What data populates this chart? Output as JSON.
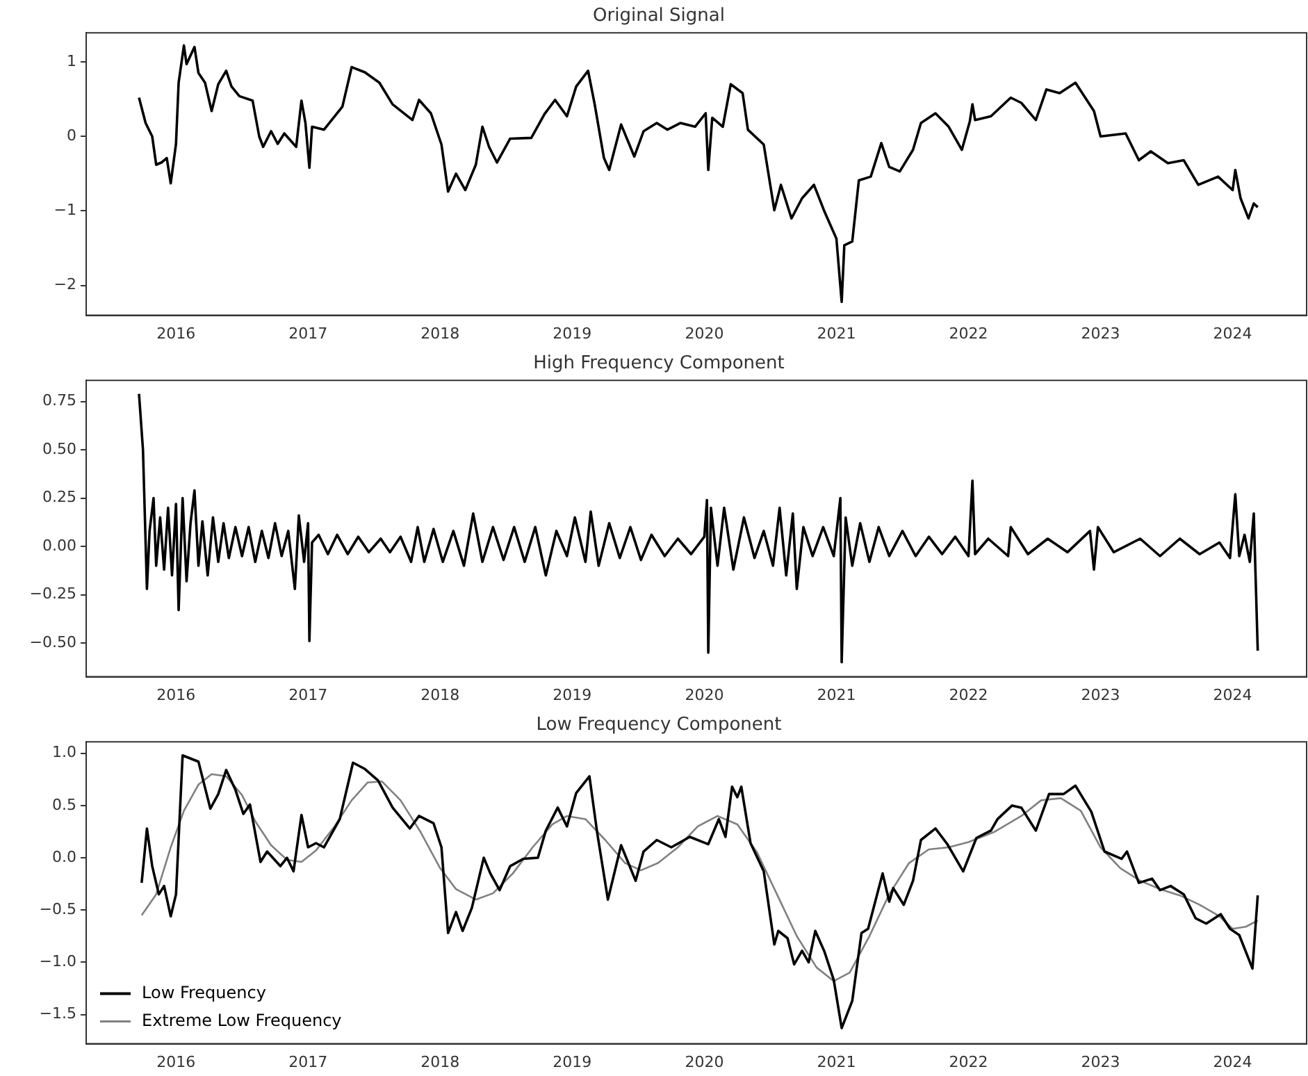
{
  "chart_data": [
    {
      "type": "line",
      "title": "Original Signal",
      "xlim": [
        2015.32,
        2024.56
      ],
      "xticks": [
        2016,
        2017,
        2018,
        2019,
        2020,
        2021,
        2022,
        2023,
        2024
      ],
      "ylim": [
        -2.4,
        1.39
      ],
      "yticks": [
        {
          "value": -2,
          "label": "−2"
        },
        {
          "value": -1,
          "label": "−1"
        },
        0,
        1
      ],
      "grid": false,
      "series": [
        {
          "color": "#000000",
          "x": [
            2015.72,
            2015.77,
            2015.82,
            2015.85,
            2015.89,
            2015.93,
            2015.96,
            2016.0,
            2016.02,
            2016.06,
            2016.08,
            2016.14,
            2016.17,
            2016.22,
            2016.27,
            2016.32,
            2016.38,
            2016.42,
            2016.48,
            2016.58,
            2016.63,
            2016.66,
            2016.72,
            2016.77,
            2016.82,
            2016.91,
            2016.95,
            2016.98,
            2017.01,
            2017.03,
            2017.12,
            2017.26,
            2017.33,
            2017.43,
            2017.54,
            2017.64,
            2017.79,
            2017.84,
            2017.93,
            2018.01,
            2018.06,
            2018.12,
            2018.19,
            2018.27,
            2018.32,
            2018.37,
            2018.43,
            2018.53,
            2018.69,
            2018.79,
            2018.87,
            2018.96,
            2019.03,
            2019.12,
            2019.17,
            2019.24,
            2019.28,
            2019.37,
            2019.47,
            2019.54,
            2019.64,
            2019.72,
            2019.82,
            2019.93,
            2020.01,
            2020.03,
            2020.06,
            2020.14,
            2020.2,
            2020.29,
            2020.33,
            2020.45,
            2020.53,
            2020.58,
            2020.66,
            2020.74,
            2020.83,
            2020.91,
            2021.0,
            2021.04,
            2021.06,
            2021.12,
            2021.17,
            2021.26,
            2021.34,
            2021.4,
            2021.48,
            2021.58,
            2021.64,
            2021.75,
            2021.85,
            2021.95,
            2022.01,
            2022.03,
            2022.05,
            2022.17,
            2022.32,
            2022.4,
            2022.51,
            2022.59,
            2022.69,
            2022.81,
            2022.95,
            2023.0,
            2023.19,
            2023.29,
            2023.38,
            2023.51,
            2023.63,
            2023.74,
            2023.89,
            2024.0,
            2024.02,
            2024.06,
            2024.12,
            2024.16,
            2024.19
          ],
          "values": [
            0.52,
            0.18,
            0.0,
            -0.38,
            -0.35,
            -0.29,
            -0.63,
            -0.1,
            0.72,
            1.22,
            0.97,
            1.2,
            0.85,
            0.72,
            0.34,
            0.7,
            0.88,
            0.67,
            0.54,
            0.48,
            0.0,
            -0.14,
            0.07,
            -0.1,
            0.04,
            -0.14,
            0.48,
            0.18,
            -0.42,
            0.13,
            0.09,
            0.4,
            0.93,
            0.86,
            0.72,
            0.43,
            0.22,
            0.49,
            0.31,
            -0.11,
            -0.74,
            -0.5,
            -0.72,
            -0.38,
            0.13,
            -0.14,
            -0.35,
            -0.03,
            -0.02,
            0.3,
            0.49,
            0.27,
            0.67,
            0.88,
            0.43,
            -0.29,
            -0.45,
            0.16,
            -0.27,
            0.07,
            0.18,
            0.09,
            0.18,
            0.13,
            0.31,
            -0.45,
            0.25,
            0.13,
            0.7,
            0.58,
            0.09,
            -0.11,
            -0.99,
            -0.65,
            -1.1,
            -0.83,
            -0.65,
            -1.01,
            -1.37,
            -2.22,
            -1.46,
            -1.41,
            -0.59,
            -0.54,
            -0.09,
            -0.41,
            -0.47,
            -0.18,
            0.18,
            0.31,
            0.13,
            -0.18,
            0.2,
            0.43,
            0.22,
            0.27,
            0.52,
            0.45,
            0.22,
            0.63,
            0.58,
            0.72,
            0.34,
            0.0,
            0.04,
            -0.32,
            -0.2,
            -0.36,
            -0.32,
            -0.65,
            -0.54,
            -0.72,
            -0.45,
            -0.83,
            -1.1,
            -0.9,
            -0.95
          ]
        }
      ]
    },
    {
      "type": "line",
      "title": "High Frequency Component",
      "xlim": [
        2015.32,
        2024.56
      ],
      "xticks": [
        2016,
        2017,
        2018,
        2019,
        2020,
        2021,
        2022,
        2023,
        2024
      ],
      "ylim": [
        -0.675,
        0.86
      ],
      "yticks": [
        {
          "value": -0.5,
          "label": "−0.50"
        },
        {
          "value": -0.25,
          "label": "−0.25"
        },
        {
          "value": 0,
          "label": "0.00"
        },
        {
          "value": 0.25,
          "label": "0.25"
        },
        {
          "value": 0.5,
          "label": "0.50"
        },
        {
          "value": 0.75,
          "label": "0.75"
        }
      ],
      "grid": false,
      "series": [
        {
          "color": "#000000",
          "x": [
            2015.72,
            2015.75,
            2015.78,
            2015.8,
            2015.83,
            2015.85,
            2015.88,
            2015.91,
            2015.94,
            2015.97,
            2016.0,
            2016.02,
            2016.05,
            2016.08,
            2016.11,
            2016.14,
            2016.17,
            2016.2,
            2016.24,
            2016.28,
            2016.32,
            2016.36,
            2016.4,
            2016.45,
            2016.5,
            2016.55,
            2016.6,
            2016.65,
            2016.7,
            2016.75,
            2016.8,
            2016.85,
            2016.9,
            2016.93,
            2016.97,
            2017.0,
            2017.01,
            2017.03,
            2017.08,
            2017.15,
            2017.22,
            2017.3,
            2017.38,
            2017.46,
            2017.55,
            2017.62,
            2017.7,
            2017.78,
            2017.83,
            2017.88,
            2017.95,
            2018.02,
            2018.1,
            2018.18,
            2018.25,
            2018.32,
            2018.4,
            2018.48,
            2018.56,
            2018.64,
            2018.72,
            2018.8,
            2018.88,
            2018.96,
            2019.02,
            2019.1,
            2019.14,
            2019.2,
            2019.28,
            2019.36,
            2019.44,
            2019.52,
            2019.6,
            2019.7,
            2019.8,
            2019.9,
            2020.0,
            2020.02,
            2020.03,
            2020.05,
            2020.1,
            2020.15,
            2020.22,
            2020.3,
            2020.38,
            2020.45,
            2020.52,
            2020.57,
            2020.62,
            2020.67,
            2020.7,
            2020.75,
            2020.82,
            2020.9,
            2020.98,
            2021.03,
            2021.04,
            2021.07,
            2021.12,
            2021.18,
            2021.25,
            2021.32,
            2021.4,
            2021.5,
            2021.6,
            2021.7,
            2021.8,
            2021.9,
            2022.0,
            2022.03,
            2022.05,
            2022.15,
            2022.3,
            2022.32,
            2022.45,
            2022.6,
            2022.75,
            2022.92,
            2022.95,
            2022.98,
            2023.1,
            2023.3,
            2023.45,
            2023.6,
            2023.75,
            2023.9,
            2023.98,
            2024.02,
            2024.05,
            2024.09,
            2024.13,
            2024.16,
            2024.19
          ],
          "values": [
            0.79,
            0.5,
            -0.22,
            0.08,
            0.25,
            -0.1,
            0.15,
            -0.12,
            0.2,
            -0.15,
            0.22,
            -0.33,
            0.25,
            -0.18,
            0.12,
            0.29,
            -0.1,
            0.13,
            -0.15,
            0.15,
            -0.08,
            0.12,
            -0.06,
            0.1,
            -0.05,
            0.1,
            -0.08,
            0.08,
            -0.06,
            0.12,
            -0.05,
            0.08,
            -0.22,
            0.16,
            -0.08,
            0.12,
            -0.49,
            0.02,
            0.06,
            -0.04,
            0.06,
            -0.04,
            0.05,
            -0.03,
            0.04,
            -0.03,
            0.05,
            -0.08,
            0.1,
            -0.08,
            0.09,
            -0.08,
            0.08,
            -0.1,
            0.17,
            -0.08,
            0.1,
            -0.07,
            0.1,
            -0.08,
            0.1,
            -0.15,
            0.08,
            -0.05,
            0.15,
            -0.08,
            0.18,
            -0.1,
            0.12,
            -0.06,
            0.1,
            -0.07,
            0.06,
            -0.05,
            0.04,
            -0.04,
            0.05,
            0.24,
            -0.55,
            0.2,
            -0.1,
            0.2,
            -0.12,
            0.15,
            -0.06,
            0.08,
            -0.1,
            0.2,
            -0.15,
            0.17,
            -0.22,
            0.1,
            -0.05,
            0.1,
            -0.05,
            0.25,
            -0.6,
            0.15,
            -0.1,
            0.12,
            -0.08,
            0.1,
            -0.05,
            0.08,
            -0.05,
            0.05,
            -0.04,
            0.05,
            -0.05,
            0.34,
            -0.04,
            0.04,
            -0.05,
            0.1,
            -0.04,
            0.04,
            -0.03,
            0.08,
            -0.12,
            0.1,
            -0.03,
            0.04,
            -0.05,
            0.04,
            -0.04,
            0.02,
            -0.06,
            0.27,
            -0.05,
            0.06,
            -0.08,
            0.17,
            -0.54
          ]
        }
      ]
    },
    {
      "type": "line",
      "title": "Low Frequency Component",
      "xlim": [
        2015.32,
        2024.56
      ],
      "xticks": [
        2016,
        2017,
        2018,
        2019,
        2020,
        2021,
        2022,
        2023,
        2024
      ],
      "ylim": [
        -1.78,
        1.11
      ],
      "yticks": [
        {
          "value": -1.5,
          "label": "−1.5"
        },
        {
          "value": -1,
          "label": "−1.0"
        },
        {
          "value": -0.5,
          "label": "−0.5"
        },
        {
          "value": 0,
          "label": "0.0"
        },
        {
          "value": 0.5,
          "label": "0.5"
        },
        {
          "value": 1,
          "label": "1.0"
        }
      ],
      "grid": false,
      "legend": "bottom left",
      "series": [
        {
          "name": "Low Frequency",
          "color": "#000000",
          "x": [
            2015.74,
            2015.78,
            2015.82,
            2015.87,
            2015.91,
            2015.96,
            2016.0,
            2016.05,
            2016.17,
            2016.26,
            2016.32,
            2016.38,
            2016.45,
            2016.51,
            2016.56,
            2016.64,
            2016.69,
            2016.79,
            2016.84,
            2016.89,
            2016.95,
            2017.0,
            2017.06,
            2017.12,
            2017.24,
            2017.34,
            2017.43,
            2017.53,
            2017.64,
            2017.77,
            2017.84,
            2017.95,
            2018.01,
            2018.06,
            2018.12,
            2018.17,
            2018.24,
            2018.33,
            2018.38,
            2018.45,
            2018.53,
            2018.63,
            2018.74,
            2018.8,
            2018.89,
            2018.96,
            2019.03,
            2019.13,
            2019.19,
            2019.27,
            2019.37,
            2019.48,
            2019.54,
            2019.64,
            2019.75,
            2019.89,
            2020.03,
            2020.11,
            2020.16,
            2020.21,
            2020.25,
            2020.28,
            2020.35,
            2020.45,
            2020.53,
            2020.56,
            2020.63,
            2020.68,
            2020.74,
            2020.79,
            2020.84,
            2020.91,
            2020.98,
            2021.04,
            2021.12,
            2021.19,
            2021.24,
            2021.35,
            2021.4,
            2021.43,
            2021.51,
            2021.58,
            2021.64,
            2021.75,
            2021.84,
            2021.96,
            2022.06,
            2022.17,
            2022.22,
            2022.33,
            2022.4,
            2022.51,
            2022.61,
            2022.72,
            2022.81,
            2022.93,
            2023.03,
            2023.16,
            2023.2,
            2023.29,
            2023.39,
            2023.45,
            2023.53,
            2023.63,
            2023.72,
            2023.8,
            2023.91,
            2023.98,
            2024.05,
            2024.15,
            2024.19
          ],
          "values": [
            -0.24,
            0.28,
            -0.08,
            -0.35,
            -0.27,
            -0.56,
            -0.35,
            0.98,
            0.92,
            0.47,
            0.61,
            0.84,
            0.65,
            0.42,
            0.51,
            -0.04,
            0.06,
            -0.08,
            0.0,
            -0.13,
            0.41,
            0.1,
            0.14,
            0.1,
            0.37,
            0.91,
            0.85,
            0.74,
            0.48,
            0.28,
            0.4,
            0.33,
            0.1,
            -0.72,
            -0.52,
            -0.7,
            -0.48,
            0.0,
            -0.15,
            -0.31,
            -0.08,
            -0.01,
            0.0,
            0.26,
            0.48,
            0.3,
            0.62,
            0.78,
            0.23,
            -0.4,
            0.12,
            -0.22,
            0.06,
            0.17,
            0.1,
            0.2,
            0.13,
            0.37,
            0.2,
            0.68,
            0.58,
            0.68,
            0.14,
            -0.13,
            -0.83,
            -0.7,
            -0.77,
            -1.02,
            -0.89,
            -1.0,
            -0.7,
            -0.9,
            -1.17,
            -1.63,
            -1.37,
            -0.72,
            -0.68,
            -0.15,
            -0.42,
            -0.29,
            -0.45,
            -0.22,
            0.17,
            0.28,
            0.13,
            -0.13,
            0.19,
            0.26,
            0.37,
            0.5,
            0.48,
            0.26,
            0.61,
            0.61,
            0.69,
            0.44,
            0.06,
            -0.01,
            0.06,
            -0.24,
            -0.2,
            -0.31,
            -0.27,
            -0.35,
            -0.58,
            -0.63,
            -0.54,
            -0.68,
            -0.74,
            -1.06,
            -0.36
          ]
        },
        {
          "name": "Extreme Low Frequency",
          "color": "#808080",
          "x": [
            2015.74,
            2015.85,
            2015.96,
            2016.06,
            2016.17,
            2016.27,
            2016.38,
            2016.5,
            2016.6,
            2016.72,
            2016.84,
            2016.95,
            2017.06,
            2017.2,
            2017.33,
            2017.45,
            2017.56,
            2017.7,
            2017.85,
            2018.0,
            2018.12,
            2018.27,
            2018.4,
            2018.55,
            2018.7,
            2018.85,
            2018.96,
            2019.1,
            2019.25,
            2019.4,
            2019.52,
            2019.65,
            2019.8,
            2019.95,
            2020.1,
            2020.25,
            2020.4,
            2020.55,
            2020.7,
            2020.85,
            2020.98,
            2021.1,
            2021.25,
            2021.4,
            2021.55,
            2021.7,
            2021.85,
            2022.0,
            2022.2,
            2022.4,
            2022.55,
            2022.7,
            2022.85,
            2023.0,
            2023.15,
            2023.3,
            2023.45,
            2023.6,
            2023.75,
            2023.9,
            2024.0,
            2024.1,
            2024.19
          ],
          "values": [
            -0.55,
            -0.35,
            0.1,
            0.45,
            0.7,
            0.8,
            0.78,
            0.6,
            0.35,
            0.12,
            -0.02,
            -0.04,
            0.07,
            0.3,
            0.55,
            0.72,
            0.73,
            0.55,
            0.25,
            -0.1,
            -0.3,
            -0.4,
            -0.34,
            -0.15,
            0.1,
            0.32,
            0.4,
            0.37,
            0.17,
            -0.05,
            -0.12,
            -0.05,
            0.1,
            0.3,
            0.4,
            0.32,
            0.05,
            -0.35,
            -0.75,
            -1.05,
            -1.18,
            -1.1,
            -0.75,
            -0.35,
            -0.05,
            0.08,
            0.1,
            0.15,
            0.25,
            0.4,
            0.55,
            0.57,
            0.45,
            0.1,
            -0.1,
            -0.22,
            -0.3,
            -0.36,
            -0.45,
            -0.56,
            -0.68,
            -0.66,
            -0.6
          ]
        }
      ]
    }
  ]
}
